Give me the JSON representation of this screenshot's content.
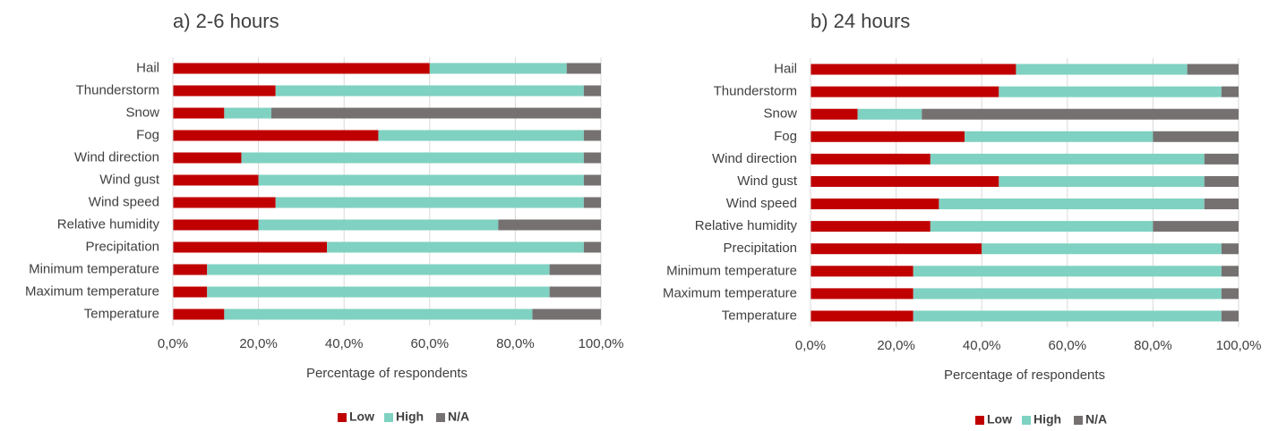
{
  "chart_data": [
    {
      "type": "stacked-barh",
      "title": "a) 2-6 hours",
      "xlabel": "Percentage of respondents",
      "categories": [
        "Hail",
        "Thunderstorm",
        "Snow",
        "Fog",
        "Wind direction",
        "Wind gust",
        "Wind speed",
        "Relative humidity",
        "Precipitation",
        "Minimum temperature",
        "Maximum temperature",
        "Temperature"
      ],
      "series": [
        {
          "name": "Low",
          "color": "#c00000",
          "values": [
            60,
            24,
            12,
            48,
            16,
            20,
            24,
            20,
            36,
            8,
            8,
            12
          ]
        },
        {
          "name": "High",
          "color": "#7fd1c1",
          "values": [
            32,
            72,
            11,
            48,
            80,
            76,
            72,
            56,
            60,
            80,
            80,
            72
          ]
        },
        {
          "name": "N/A",
          "color": "#767171",
          "values": [
            8,
            4,
            77,
            4,
            4,
            4,
            4,
            24,
            4,
            12,
            12,
            16
          ]
        }
      ],
      "xlim": [
        0,
        100
      ],
      "xticks": [
        {
          "value": 0,
          "label": "0,0%"
        },
        {
          "value": 20,
          "label": "20,0%"
        },
        {
          "value": 40,
          "label": "40,0%"
        },
        {
          "value": 60,
          "label": "60,0%"
        },
        {
          "value": 80,
          "label": "80,0%"
        },
        {
          "value": 100,
          "label": "100,0%"
        }
      ],
      "grid": true,
      "legend": "bottom"
    },
    {
      "type": "stacked-barh",
      "title": "b) 24 hours",
      "xlabel": "Percentage of respondents",
      "categories": [
        "Hail",
        "Thunderstorm",
        "Snow",
        "Fog",
        "Wind direction",
        "Wind gust",
        "Wind speed",
        "Relative humidity",
        "Precipitation",
        "Minimum temperature",
        "Maximum temperature",
        "Temperature"
      ],
      "series": [
        {
          "name": "Low",
          "color": "#c00000",
          "values": [
            48,
            44,
            11,
            36,
            28,
            44,
            30,
            28,
            40,
            24,
            24,
            24
          ]
        },
        {
          "name": "High",
          "color": "#7fd1c1",
          "values": [
            40,
            52,
            15,
            44,
            64,
            48,
            62,
            52,
            56,
            72,
            72,
            72
          ]
        },
        {
          "name": "N/A",
          "color": "#767171",
          "values": [
            12,
            4,
            74,
            20,
            8,
            8,
            8,
            20,
            4,
            4,
            4,
            4
          ]
        }
      ],
      "xlim": [
        0,
        100
      ],
      "xticks": [
        {
          "value": 0,
          "label": "0,0%"
        },
        {
          "value": 20,
          "label": "20,0%"
        },
        {
          "value": 40,
          "label": "40,0%"
        },
        {
          "value": 60,
          "label": "60,0%"
        },
        {
          "value": 80,
          "label": "80,0%"
        },
        {
          "value": 100,
          "label": "100,0%"
        }
      ],
      "grid": true,
      "legend": "bottom"
    }
  ]
}
